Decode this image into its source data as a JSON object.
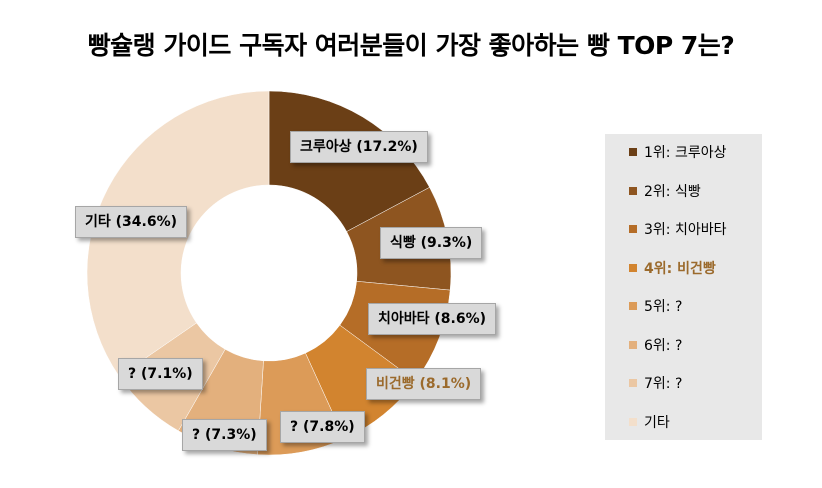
{
  "title": "빵슐랭 가이드 구독자 여러분들이 가장 좋아하는 빵 TOP 7는?",
  "chart_data": {
    "type": "pie",
    "variant": "donut",
    "title": "빵슐랭 가이드 구독자 여러분들이 가장 좋아하는 빵 TOP 7는?",
    "slices": [
      {
        "label": "크루아상",
        "value": 17.2,
        "data_label": "크루아상 (17.2%)",
        "color": "#6b3f16",
        "highlight": false
      },
      {
        "label": "식빵",
        "value": 9.3,
        "data_label": "식빵 (9.3%)",
        "color": "#8e5520",
        "highlight": false
      },
      {
        "label": "치아바타",
        "value": 8.6,
        "data_label": "치아바타 (8.6%)",
        "color": "#b56d27",
        "highlight": false
      },
      {
        "label": "비건빵",
        "value": 8.1,
        "data_label": "비건빵 (8.1%)",
        "color": "#d2842f",
        "highlight": true
      },
      {
        "label": "?",
        "value": 7.8,
        "data_label": "? (7.8%)",
        "color": "#dc9b58",
        "highlight": false
      },
      {
        "label": "?",
        "value": 7.3,
        "data_label": "? (7.3%)",
        "color": "#e3b07d",
        "highlight": false
      },
      {
        "label": "?",
        "value": 7.1,
        "data_label": "? (7.1%)",
        "color": "#ebc7a3",
        "highlight": false
      },
      {
        "label": "기타",
        "value": 34.6,
        "data_label": "기타 (34.6%)",
        "color": "#f3dfcb",
        "highlight": false
      }
    ],
    "legend": {
      "placement": "right",
      "entries": [
        "1위: 크루아상",
        "2위: 식빵",
        "3위: 치아바타",
        "4위: 비건빵",
        "5위: ?",
        "6위: ?",
        "7위: ?",
        "기타"
      ]
    }
  }
}
